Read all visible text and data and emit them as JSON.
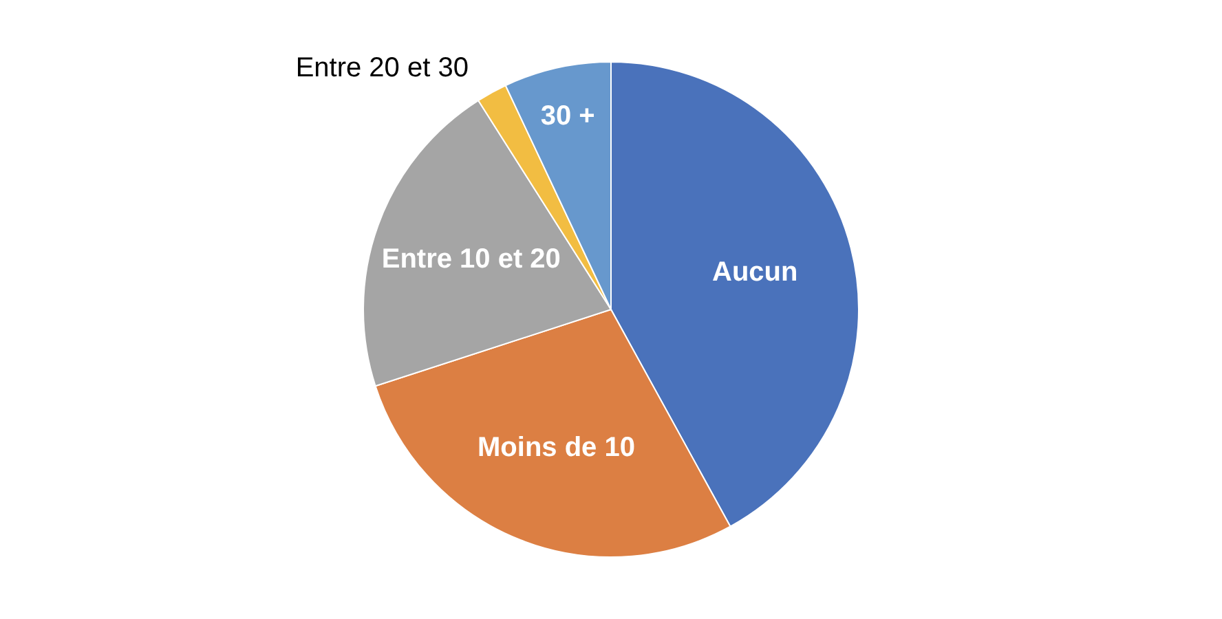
{
  "chart_data": {
    "type": "pie",
    "categories": [
      "Aucun",
      "Moins de 10",
      "Entre 10 et 20",
      "Entre 20 et 30",
      "30 +"
    ],
    "values": [
      42,
      28,
      21,
      2,
      7
    ],
    "colors": [
      "#4a72bb",
      "#dc7f43",
      "#a5a5a5",
      "#f2bd42",
      "#6798cd"
    ]
  }
}
